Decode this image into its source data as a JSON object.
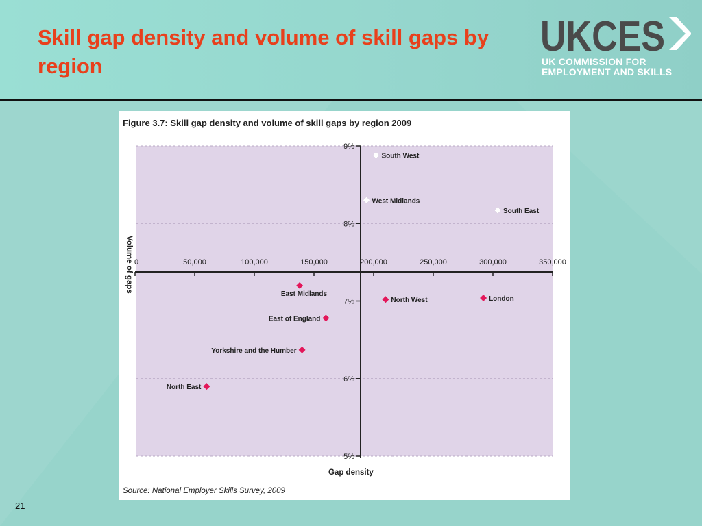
{
  "slide": {
    "title": "Skill gap density and volume of skill gaps by region",
    "page_number": "21"
  },
  "logo": {
    "wordmark": "UKCES",
    "line1": "UK COMMISSION FOR",
    "line2": "EMPLOYMENT AND SKILLS"
  },
  "colors": {
    "title": "#e8401c",
    "plot_bg": "#e0d4e8",
    "marker_negative": "#e3175a",
    "marker_positive": "#ffffff",
    "logo_gray": "#4a4a4a"
  },
  "chart_data": {
    "type": "scatter",
    "title": "Figure 3.7: Skill gap density and volume of skill gaps by region 2009",
    "source": "Source: National Employer Skills Survey, 2009",
    "xlabel": "Gap density",
    "ylabel": "Volume of gaps",
    "x_range": [
      5,
      9
    ],
    "y_range": [
      0,
      350000
    ],
    "x_ticks": [
      "5%",
      "6%",
      "7%",
      "8%",
      "9%"
    ],
    "y_ticks": [
      "0",
      "50,000",
      "100,000",
      "150,000",
      "200,000",
      "250,000",
      "300,000",
      "350,000"
    ],
    "grid": "dashed",
    "points": [
      {
        "label": "South West",
        "x": 8.88,
        "y": 202000,
        "marker": "white"
      },
      {
        "label": "West Midlands",
        "x": 8.3,
        "y": 194000,
        "marker": "white"
      },
      {
        "label": "South East",
        "x": 8.17,
        "y": 304000,
        "marker": "white"
      },
      {
        "label": "East Midlands",
        "x": 7.2,
        "y": 138000,
        "marker": "red"
      },
      {
        "label": "North West",
        "x": 7.02,
        "y": 210000,
        "marker": "red"
      },
      {
        "label": "London",
        "x": 7.04,
        "y": 292000,
        "marker": "red"
      },
      {
        "label": "East of England",
        "x": 6.78,
        "y": 160000,
        "marker": "red"
      },
      {
        "label": "Yorkshire and the Humber",
        "x": 6.37,
        "y": 140000,
        "marker": "red"
      },
      {
        "label": "North East",
        "x": 5.9,
        "y": 60000,
        "marker": "red"
      }
    ]
  }
}
